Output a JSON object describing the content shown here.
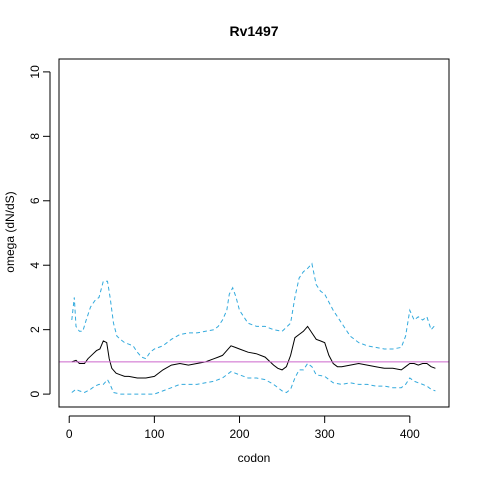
{
  "chart_data": {
    "type": "line",
    "title": "Rv1497",
    "xlabel": "codon",
    "ylabel": "omega (dN/dS)",
    "xlim": [
      -12,
      446
    ],
    "ylim": [
      -0.4,
      10.4
    ],
    "xticks": [
      0,
      100,
      200,
      300,
      400
    ],
    "yticks": [
      0,
      2,
      4,
      6,
      8,
      10
    ],
    "grid": false,
    "legend": "none",
    "reference_line": {
      "y": 1,
      "color": "#cc66cc"
    },
    "series": [
      {
        "role": "estimate",
        "color": "#000000",
        "dash": "solid",
        "x": [
          3,
          8,
          12,
          18,
          22,
          28,
          32,
          36,
          40,
          44,
          47,
          50,
          55,
          60,
          65,
          70,
          80,
          90,
          100,
          110,
          120,
          130,
          140,
          150,
          160,
          170,
          175,
          180,
          185,
          190,
          195,
          200,
          210,
          220,
          230,
          240,
          245,
          250,
          255,
          260,
          265,
          270,
          275,
          280,
          285,
          290,
          295,
          300,
          305,
          310,
          315,
          320,
          330,
          340,
          350,
          360,
          370,
          380,
          390,
          395,
          400,
          405,
          410,
          415,
          420,
          425,
          430
        ],
        "y": [
          1.0,
          1.05,
          0.95,
          0.95,
          1.1,
          1.25,
          1.35,
          1.4,
          1.65,
          1.6,
          1.1,
          0.8,
          0.65,
          0.6,
          0.55,
          0.55,
          0.5,
          0.5,
          0.55,
          0.75,
          0.9,
          0.95,
          0.9,
          0.95,
          1.0,
          1.1,
          1.15,
          1.2,
          1.35,
          1.5,
          1.45,
          1.4,
          1.3,
          1.25,
          1.15,
          0.9,
          0.8,
          0.75,
          0.85,
          1.2,
          1.75,
          1.85,
          1.95,
          2.1,
          1.9,
          1.7,
          1.65,
          1.6,
          1.2,
          0.95,
          0.85,
          0.85,
          0.9,
          0.95,
          0.9,
          0.85,
          0.8,
          0.8,
          0.75,
          0.85,
          0.95,
          0.95,
          0.9,
          0.95,
          0.95,
          0.85,
          0.8
        ]
      },
      {
        "role": "upper-bound",
        "color": "#33aadd",
        "dash": "dashed",
        "x": [
          3,
          6,
          8,
          12,
          16,
          20,
          25,
          30,
          35,
          40,
          45,
          48,
          52,
          56,
          60,
          65,
          70,
          75,
          80,
          85,
          90,
          95,
          100,
          110,
          120,
          130,
          140,
          150,
          160,
          170,
          175,
          180,
          185,
          188,
          192,
          196,
          200,
          210,
          220,
          230,
          240,
          250,
          260,
          265,
          270,
          275,
          280,
          285,
          290,
          295,
          300,
          310,
          320,
          330,
          340,
          350,
          360,
          370,
          380,
          390,
          395,
          400,
          405,
          410,
          415,
          420,
          425,
          430
        ],
        "y": [
          2.3,
          3.0,
          2.1,
          1.95,
          1.95,
          2.3,
          2.7,
          2.9,
          3.0,
          3.5,
          3.5,
          3.0,
          2.2,
          1.8,
          1.7,
          1.6,
          1.55,
          1.5,
          1.3,
          1.15,
          1.1,
          1.3,
          1.4,
          1.5,
          1.7,
          1.85,
          1.9,
          1.9,
          1.95,
          2.0,
          2.1,
          2.3,
          2.6,
          3.1,
          3.3,
          3.0,
          2.6,
          2.2,
          2.1,
          2.1,
          2.0,
          1.95,
          2.2,
          3.0,
          3.6,
          3.8,
          3.9,
          4.05,
          3.4,
          3.2,
          3.1,
          2.6,
          2.2,
          1.8,
          1.6,
          1.5,
          1.45,
          1.4,
          1.4,
          1.45,
          1.8,
          2.6,
          2.3,
          2.4,
          2.3,
          2.4,
          2.0,
          2.15
        ]
      },
      {
        "role": "lower-bound",
        "color": "#33aadd",
        "dash": "dashed",
        "x": [
          3,
          8,
          12,
          18,
          25,
          30,
          35,
          40,
          45,
          48,
          52,
          60,
          70,
          80,
          90,
          100,
          110,
          120,
          130,
          140,
          150,
          160,
          170,
          180,
          190,
          200,
          210,
          220,
          230,
          240,
          250,
          255,
          260,
          265,
          270,
          275,
          280,
          285,
          290,
          300,
          310,
          320,
          330,
          340,
          350,
          360,
          370,
          380,
          390,
          395,
          400,
          405,
          410,
          415,
          420,
          425,
          430
        ],
        "y": [
          0.05,
          0.15,
          0.1,
          0.05,
          0.15,
          0.25,
          0.3,
          0.3,
          0.45,
          0.3,
          0.05,
          0.0,
          0.0,
          0.0,
          0.0,
          0.0,
          0.1,
          0.2,
          0.3,
          0.3,
          0.3,
          0.35,
          0.4,
          0.5,
          0.7,
          0.6,
          0.5,
          0.5,
          0.45,
          0.3,
          0.1,
          0.05,
          0.15,
          0.5,
          0.75,
          0.75,
          0.95,
          0.85,
          0.6,
          0.55,
          0.35,
          0.3,
          0.35,
          0.3,
          0.3,
          0.25,
          0.25,
          0.2,
          0.2,
          0.3,
          0.5,
          0.4,
          0.35,
          0.3,
          0.25,
          0.15,
          0.1
        ]
      }
    ]
  }
}
